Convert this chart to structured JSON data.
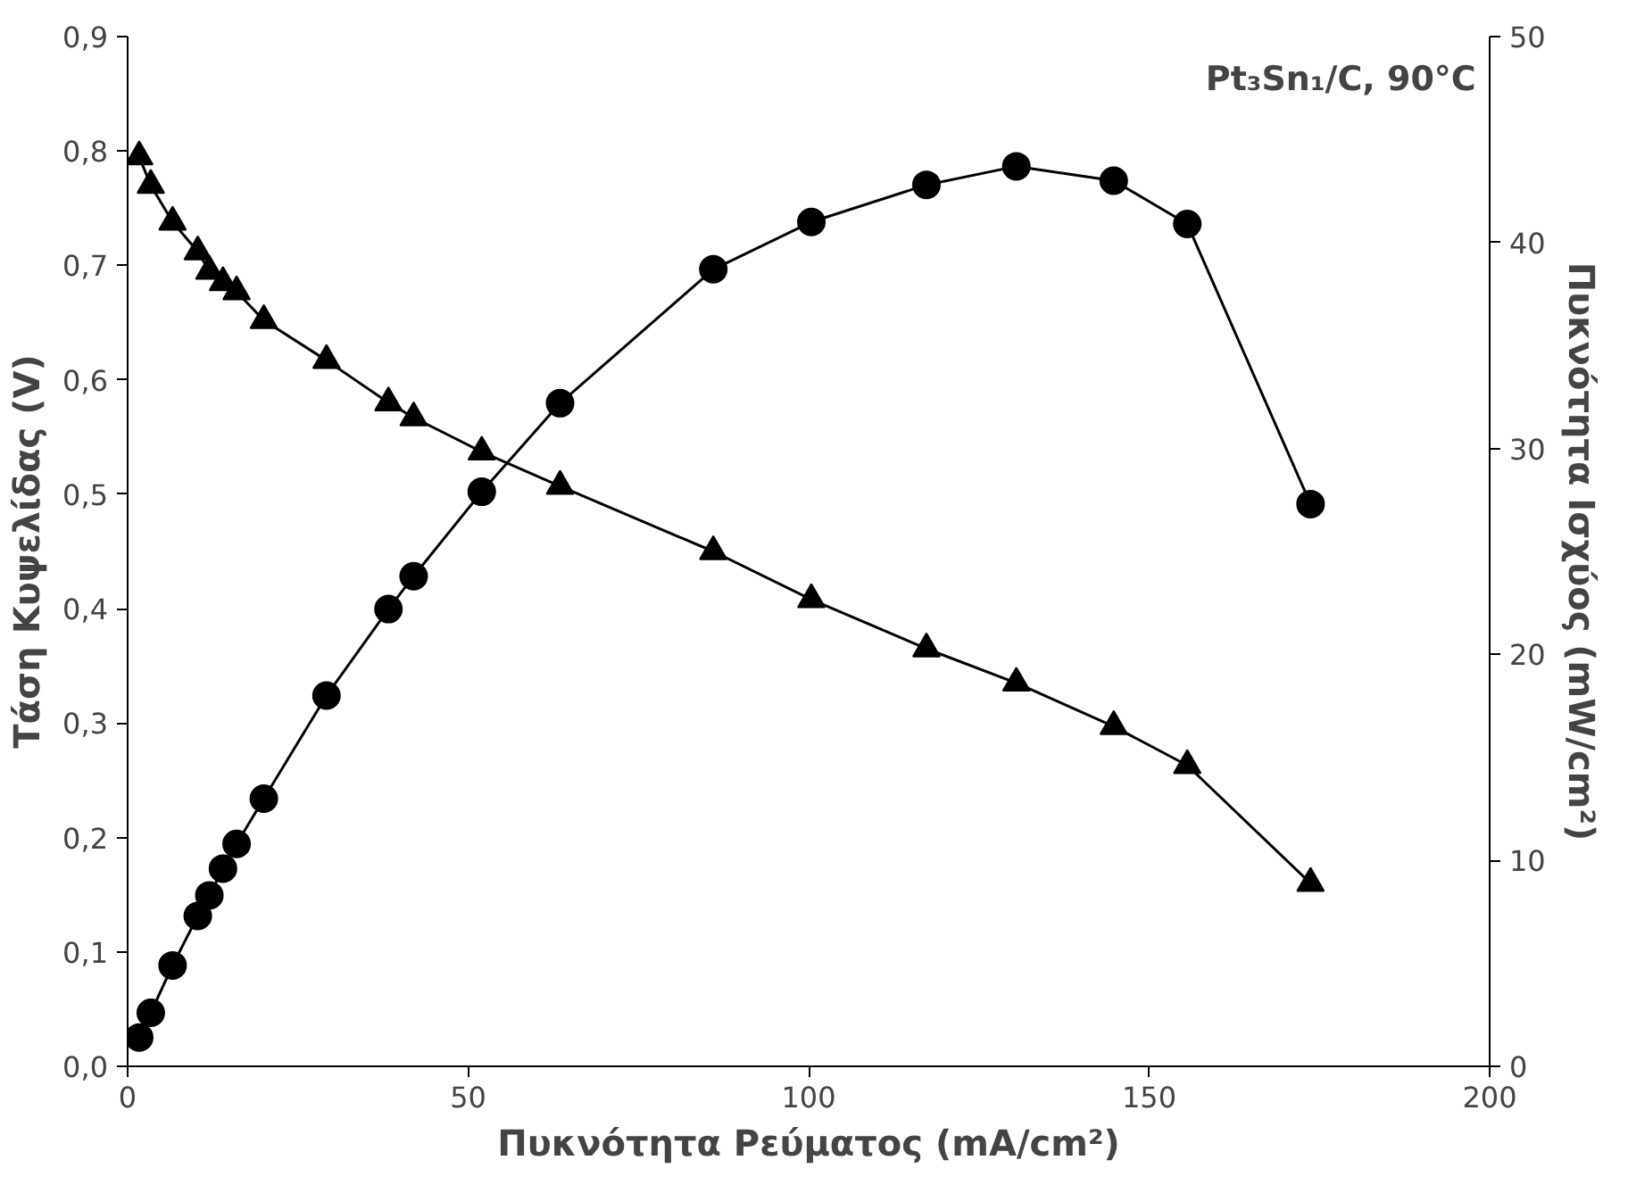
{
  "chart_data": {
    "type": "line",
    "title": "Pt₃Sn₁/C, 90°C",
    "xlabel": "Πυκνότητα Ρεύματος (mA/cm²)",
    "ylabel": "Τάση Κυψελίδας (V)",
    "y2label": "Πυκνότητα Ισχύος (mW/cm²)",
    "x": [
      1.7,
      3.4,
      6.6,
      10.3,
      12,
      14,
      16,
      20,
      29.2,
      38.3,
      42,
      52,
      63.5,
      86,
      100.4,
      117.3,
      130.5,
      144.8,
      155.6,
      173.7
    ],
    "series": [
      {
        "color": "#000000",
        "marker": "triangle",
        "values": [
          0.795,
          0.77,
          0.738,
          0.712,
          0.695,
          0.685,
          0.677,
          0.652,
          0.617,
          0.58,
          0.567,
          0.537,
          0.507,
          0.45,
          0.408,
          0.365,
          0.335,
          0.297,
          0.263,
          0.16
        ]
      },
      {
        "color": "#000000",
        "marker": "circle",
        "axis": "y2",
        "values": [
          1.4,
          2.6,
          4.9,
          7.3,
          8.3,
          9.6,
          10.8,
          13.0,
          18.0,
          22.2,
          23.8,
          27.9,
          32.2,
          38.7,
          41.0,
          42.8,
          43.7,
          43.0,
          40.9,
          27.3
        ]
      }
    ],
    "xlim": [
      0,
      200
    ],
    "xticks": [
      0,
      50,
      100,
      150,
      200
    ],
    "ylim": [
      0,
      0.9
    ],
    "yticks": [
      {
        "value": 0,
        "label": "0,0"
      },
      {
        "value": 0.1,
        "label": "0,1"
      },
      {
        "value": 0.2,
        "label": "0,2"
      },
      {
        "value": 0.3,
        "label": "0,3"
      },
      {
        "value": 0.4,
        "label": "0,4"
      },
      {
        "value": 0.5,
        "label": "0,5"
      },
      {
        "value": 0.6,
        "label": "0,6"
      },
      {
        "value": 0.7,
        "label": "0,7"
      },
      {
        "value": 0.8,
        "label": "0,8"
      },
      {
        "value": 0.9,
        "label": "0,9"
      }
    ],
    "y2lim": [
      0,
      50
    ],
    "y2ticks": [
      0,
      10,
      20,
      30,
      40,
      50
    ],
    "grid": false,
    "line_style": "solid"
  }
}
